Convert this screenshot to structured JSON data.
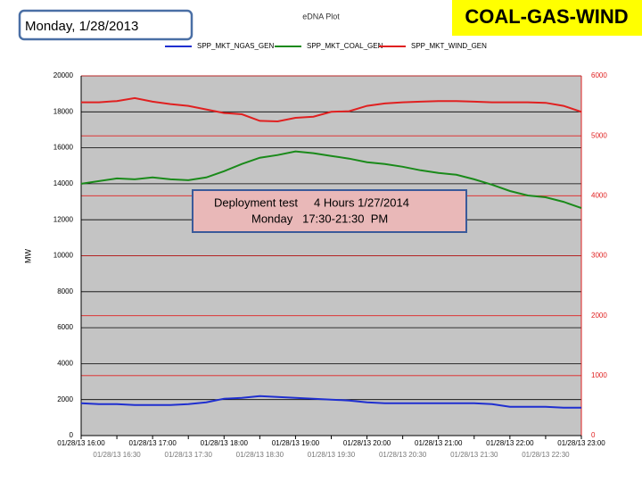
{
  "chart_data": {
    "type": "line",
    "slide_title": "Monday, 1/28/2013",
    "banner": "COAL-GAS-WIND",
    "title": "eDNA Plot",
    "ylabel": "MW",
    "annotations": [
      "Deployment test     4 Hours 1/27/2014",
      "Monday   17:30-21:30  PM"
    ],
    "x": [
      16,
      16.25,
      16.5,
      16.75,
      17,
      17.25,
      17.5,
      17.75,
      18,
      18.25,
      18.5,
      18.75,
      19,
      19.25,
      19.5,
      19.75,
      20,
      20.25,
      20.5,
      20.75,
      21,
      21.25,
      21.5,
      21.75,
      22,
      22.25,
      22.5,
      22.75,
      23
    ],
    "xlim": [
      16,
      23
    ],
    "xticks": [
      {
        "value": 16,
        "label": "01/28/13 16:00"
      },
      {
        "value": 16.5,
        "label": "01/28/13 16:30"
      },
      {
        "value": 17,
        "label": "01/28/13 17:00"
      },
      {
        "value": 17.5,
        "label": "01/28/13 17:30"
      },
      {
        "value": 18,
        "label": "01/28/13 18:00"
      },
      {
        "value": 18.5,
        "label": "01/28/13 18:30"
      },
      {
        "value": 19,
        "label": "01/28/13 19:00"
      },
      {
        "value": 19.5,
        "label": "01/28/13 19:30"
      },
      {
        "value": 20,
        "label": "01/28/13 20:00"
      },
      {
        "value": 20.5,
        "label": "01/28/13 20:30"
      },
      {
        "value": 21,
        "label": "01/28/13 21:00"
      },
      {
        "value": 21.5,
        "label": "01/28/13 21:30"
      },
      {
        "value": 22,
        "label": "01/28/13 22:00"
      },
      {
        "value": 22.5,
        "label": "01/28/13 22:30"
      },
      {
        "value": 23,
        "label": "01/28/13 23:00"
      }
    ],
    "ylim": [
      0,
      20000
    ],
    "yticks": [
      0,
      2000,
      4000,
      6000,
      8000,
      10000,
      12000,
      14000,
      16000,
      18000,
      20000
    ],
    "y2lim": [
      0,
      6000
    ],
    "y2ticks": [
      0,
      1000,
      2000,
      3000,
      4000,
      5000,
      6000
    ],
    "grid": true,
    "series": [
      {
        "name": "SPP_MKT_NGAS_GEN",
        "color": "#1f2fd0",
        "axis": "y",
        "values": [
          1800,
          1750,
          1750,
          1700,
          1700,
          1700,
          1750,
          1850,
          2050,
          2100,
          2200,
          2150,
          2100,
          2050,
          2000,
          1950,
          1850,
          1800,
          1800,
          1800,
          1800,
          1800,
          1800,
          1750,
          1600,
          1600,
          1600,
          1550,
          1550
        ]
      },
      {
        "name": "SPP_MKT_COAL_GEN",
        "color": "#1a8a1a",
        "axis": "y",
        "values": [
          14000,
          14150,
          14300,
          14250,
          14350,
          14250,
          14200,
          14350,
          14700,
          15100,
          15450,
          15600,
          15800,
          15700,
          15550,
          15400,
          15200,
          15100,
          14950,
          14750,
          14600,
          14500,
          14250,
          13950,
          13600,
          13350,
          13250,
          13000,
          12650
        ]
      },
      {
        "name": "SPP_MKT_WIND_GEN",
        "color": "#e02020",
        "axis": "y2",
        "values": [
          5560,
          5560,
          5580,
          5630,
          5570,
          5530,
          5500,
          5440,
          5380,
          5360,
          5250,
          5240,
          5300,
          5320,
          5400,
          5410,
          5500,
          5540,
          5560,
          5570,
          5580,
          5580,
          5570,
          5560,
          5560,
          5560,
          5550,
          5500,
          5400
        ]
      }
    ]
  }
}
